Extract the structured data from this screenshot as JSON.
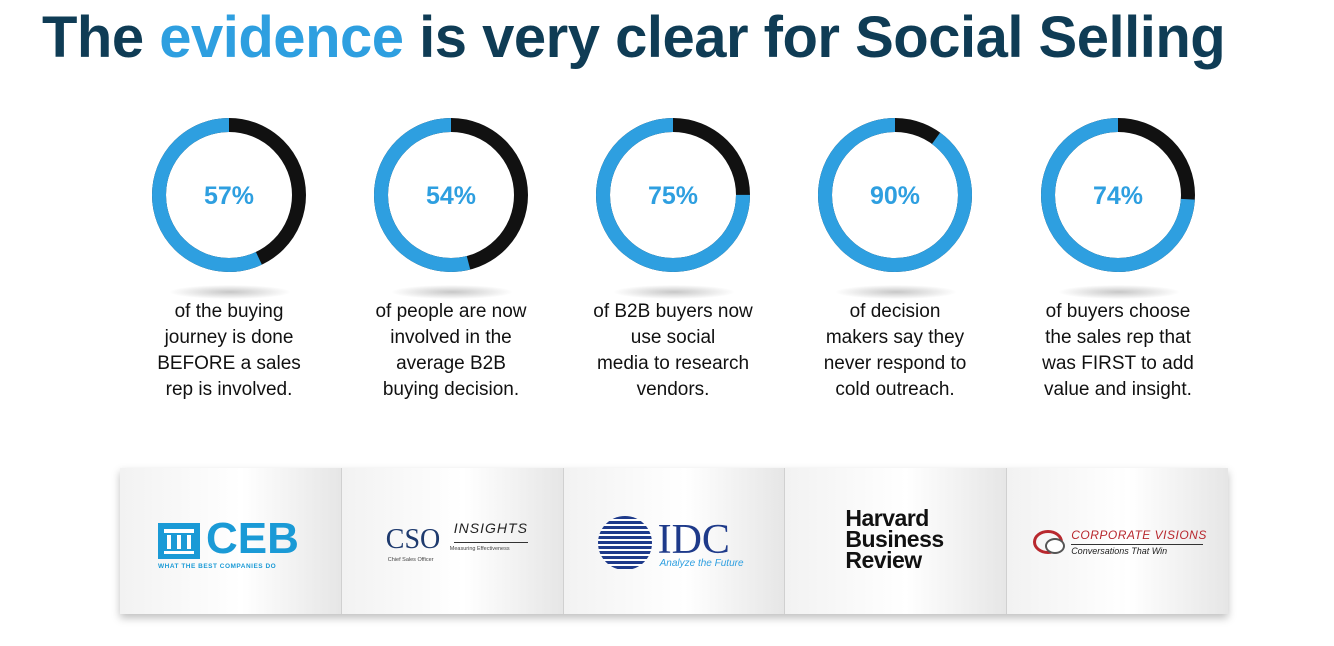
{
  "title": {
    "part1": "The",
    "highlight": "evidence",
    "part2": "is very clear for Social Selling"
  },
  "colors": {
    "accent": "#2e9fe0",
    "remainder": "#111111",
    "title": "#0f3c55"
  },
  "stats": [
    {
      "value": "57%",
      "fraction": 0.57,
      "text": "of the buying\njourney  is done\nBEFORE a sales\nrep is involved."
    },
    {
      "value": "54%",
      "fraction": 0.54,
      "text": "of people  are now\ninvolved  in the\naverage  B2B\nbuying  decision."
    },
    {
      "value": "75%",
      "fraction": 0.75,
      "text": "of B2B buyers now\nuse social\nmedia to research\nvendors."
    },
    {
      "value": "90%",
      "fraction": 0.9,
      "text": "of decision\nmakers say they\nnever respond to\ncold outreach."
    },
    {
      "value": "74%",
      "fraction": 0.74,
      "text": "of buyers  choose\nthe sales rep that\nwas FIRST to add\nvalue and insight."
    }
  ],
  "sources": {
    "ceb": {
      "name": "CEB",
      "tagline": "WHAT THE BEST COMPANIES DO"
    },
    "cso": {
      "name": "CSO",
      "insights": "INSIGHTS",
      "small": "Measuring Effectiveness",
      "sub": "Chief Sales Officer"
    },
    "idc": {
      "name": "IDC",
      "tagline": "Analyze the Future"
    },
    "hbr": {
      "name": "Harvard\nBusiness\nReview"
    },
    "cv": {
      "name": "CORPORATE VISIONS",
      "tagline": "Conversations That Win"
    }
  }
}
